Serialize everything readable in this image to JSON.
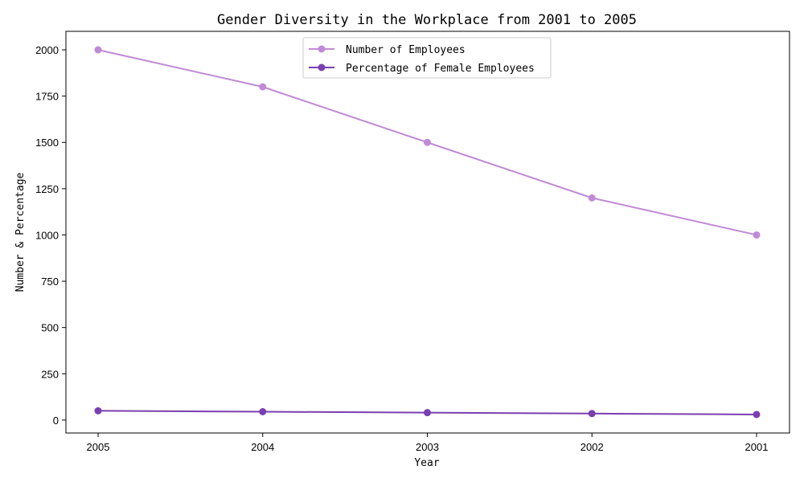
{
  "chart_data": {
    "type": "line",
    "title": "Gender Diversity in the Workplace from 2001 to 2005",
    "xlabel": "Year",
    "ylabel": "Number & Percentage",
    "categories": [
      "2005",
      "2004",
      "2003",
      "2002",
      "2001"
    ],
    "yticks": [
      0,
      250,
      500,
      750,
      1000,
      1250,
      1500,
      1750,
      2000
    ],
    "ylim": [
      -70,
      2100
    ],
    "grid": false,
    "legend": "top-center",
    "series": [
      {
        "name": "Number of Employees",
        "values": [
          2000,
          1800,
          1500,
          1200,
          1000
        ],
        "color": "#c08ad6"
      },
      {
        "name": "Percentage of Female Employees",
        "values": [
          50,
          45,
          40,
          35,
          30
        ],
        "color": "#7a3fb0"
      }
    ]
  }
}
